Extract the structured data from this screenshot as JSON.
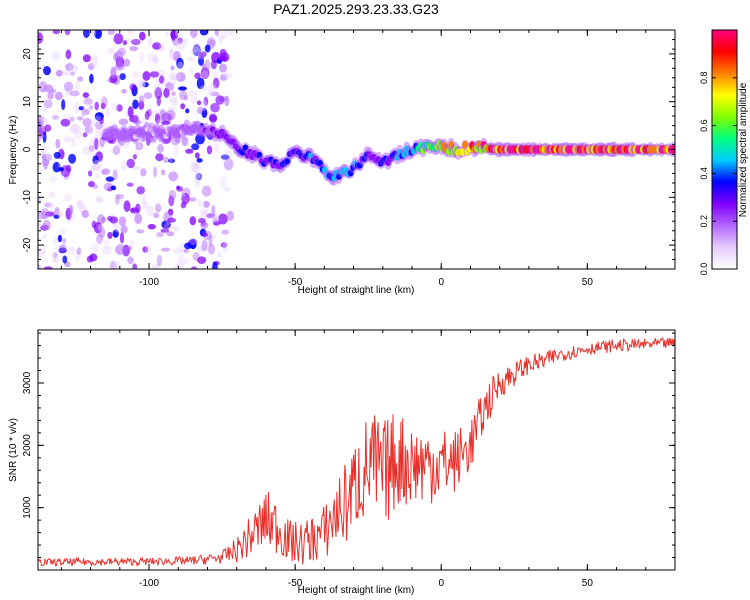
{
  "figure": {
    "title": "PAZ1.2025.293.23.33.G23"
  },
  "chart_data": [
    {
      "type": "heatmap",
      "title": "PAZ1.2025.293.23.33.G23",
      "xlabel": "Height of straight line (km)",
      "ylabel": "Frequency (Hz)",
      "xlim": [
        -138,
        80
      ],
      "ylim": [
        -25,
        25
      ],
      "xticks": [
        -100,
        -50,
        0,
        50
      ],
      "xtick_labels": [
        "-100",
        "-50",
        "0",
        "50"
      ],
      "yticks": [
        -20,
        -10,
        0,
        10,
        20
      ],
      "ytick_labels": [
        "-20",
        "-10",
        "0",
        "10",
        "20"
      ],
      "ridge": {
        "description": "frequency of the dominant spectral ridge vs height",
        "x": [
          -112,
          -100,
          -90,
          -82,
          -75,
          -68,
          -62,
          -56,
          -50,
          -45,
          -40,
          -36,
          -32,
          -28,
          -24,
          -20,
          -15,
          -10,
          -5,
          0,
          5,
          10,
          20,
          30,
          40,
          50,
          60,
          70,
          80
        ],
        "freq": [
          3,
          3.5,
          3.5,
          4.5,
          3,
          0,
          -2,
          -3.5,
          -0.5,
          -1.5,
          -4.5,
          -5.5,
          -5,
          -3,
          -1,
          -2.5,
          -1.5,
          0,
          0.5,
          0.5,
          0,
          0.5,
          0,
          0,
          0,
          0,
          0,
          0,
          0
        ],
        "amplitude": [
          0.2,
          0.15,
          0.15,
          0.2,
          0.25,
          0.3,
          0.3,
          0.35,
          0.3,
          0.35,
          0.4,
          0.4,
          0.38,
          0.35,
          0.3,
          0.35,
          0.4,
          0.45,
          0.55,
          0.7,
          0.75,
          0.8,
          0.85,
          0.9,
          0.9,
          0.9,
          0.9,
          0.9,
          0.9
        ]
      },
      "noise_region_xlim": [
        -138,
        -72
      ],
      "colorbar": {
        "label": "Normalized spectral amplitude",
        "range": [
          0,
          1
        ],
        "ticks": [
          0.0,
          0.2,
          0.4,
          0.6,
          0.8
        ],
        "tick_labels": [
          "0.0",
          "0.2",
          "0.4",
          "0.6",
          "0.8"
        ],
        "colors": [
          "#ffffff",
          "#e6ccff",
          "#b266ff",
          "#8000ff",
          "#0000ff",
          "#00ccff",
          "#00ff80",
          "#80ff00",
          "#ffff00",
          "#ff8000",
          "#ff0000",
          "#ff0080"
        ]
      }
    },
    {
      "type": "line",
      "xlabel": "Height of straight line (km)",
      "ylabel": "SNR (10 * v/v)",
      "xlim": [
        -138,
        80
      ],
      "ylim": [
        0,
        3850
      ],
      "xticks": [
        -100,
        -50,
        0,
        50
      ],
      "xtick_labels": [
        "-100",
        "-50",
        "0",
        "50"
      ],
      "yticks": [
        1000,
        2000,
        3000
      ],
      "ytick_labels": [
        "1000",
        "2000",
        "3000"
      ],
      "color": "#e8302a",
      "series": [
        {
          "name": "SNR",
          "x": [
            -138,
            -120,
            -100,
            -85,
            -75,
            -70,
            -65,
            -60,
            -56,
            -52,
            -48,
            -44,
            -40,
            -36,
            -32,
            -28,
            -24,
            -20,
            -15,
            -10,
            -5,
            0,
            5,
            10,
            15,
            20,
            25,
            30,
            35,
            40,
            50,
            60,
            70,
            80
          ],
          "y": [
            120,
            130,
            135,
            150,
            200,
            320,
            550,
            800,
            700,
            450,
            420,
            500,
            600,
            900,
            1100,
            1500,
            1700,
            1500,
            1800,
            1700,
            1700,
            1700,
            1750,
            2000,
            2600,
            3000,
            3150,
            3300,
            3350,
            3450,
            3550,
            3600,
            3620,
            3640
          ],
          "spread": [
            60,
            60,
            60,
            70,
            100,
            200,
            350,
            500,
            450,
            350,
            350,
            400,
            450,
            600,
            700,
            800,
            900,
            900,
            800,
            700,
            650,
            600,
            500,
            450,
            350,
            250,
            200,
            150,
            150,
            120,
            100,
            100,
            90,
            90
          ]
        }
      ]
    }
  ]
}
